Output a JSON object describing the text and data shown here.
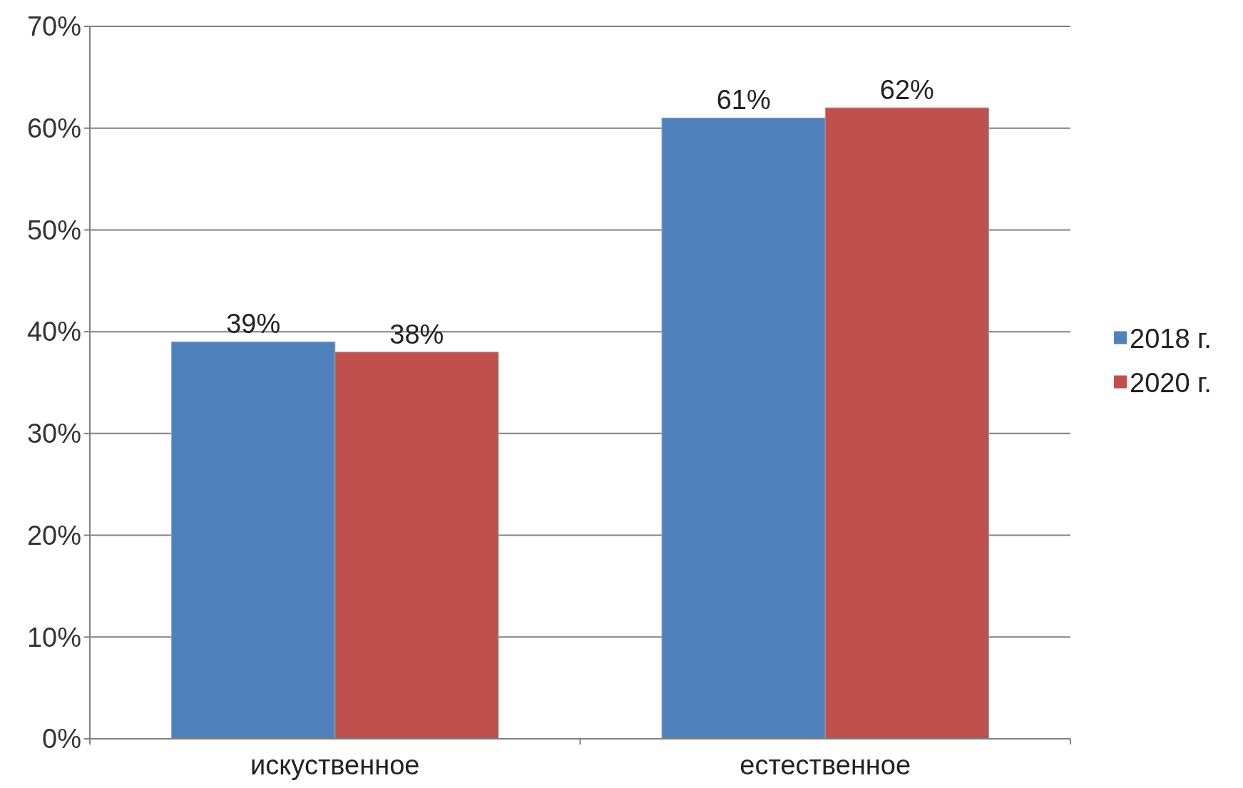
{
  "chart_data": {
    "type": "bar",
    "categories": [
      "искуственное",
      "естественное"
    ],
    "series": [
      {
        "name": "2018 г.",
        "color": "#4f81bd",
        "values": [
          39,
          61
        ],
        "value_labels": [
          "39%",
          "61%"
        ]
      },
      {
        "name": "2020 г.",
        "color": "#c0504d",
        "values": [
          38,
          62
        ],
        "value_labels": [
          "38%",
          "62%"
        ]
      }
    ],
    "ylim": [
      0,
      70
    ],
    "yticks": [
      {
        "value": 0,
        "label": "0%"
      },
      {
        "value": 10,
        "label": "10%"
      },
      {
        "value": 20,
        "label": "20%"
      },
      {
        "value": 30,
        "label": "30%"
      },
      {
        "value": 40,
        "label": "40%"
      },
      {
        "value": 50,
        "label": "50%"
      },
      {
        "value": 60,
        "label": "60%"
      },
      {
        "value": 70,
        "label": "70%"
      }
    ],
    "grid": "y",
    "legend": "right"
  }
}
